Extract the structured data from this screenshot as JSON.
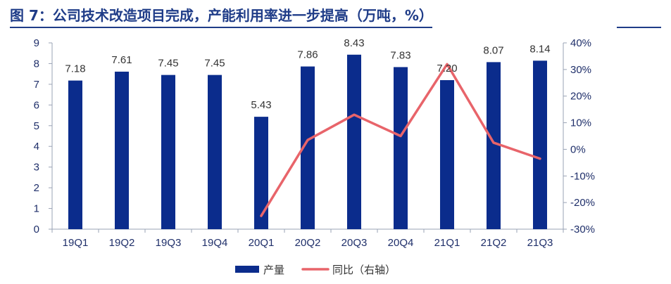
{
  "title": "图 7：公司技术改造项目完成，产能利用率进一步提高（万吨，%）",
  "chart_data": {
    "type": "bar",
    "categories": [
      "19Q1",
      "19Q2",
      "19Q3",
      "19Q4",
      "20Q1",
      "20Q2",
      "20Q3",
      "20Q4",
      "21Q1",
      "21Q2",
      "21Q3"
    ],
    "series": [
      {
        "name": "产量",
        "type": "bar",
        "axis": "left",
        "values": [
          7.18,
          7.61,
          7.45,
          7.45,
          5.43,
          7.86,
          8.43,
          7.83,
          7.2,
          8.07,
          8.14
        ],
        "labels": [
          "7.18",
          "7.61",
          "7.45",
          "7.45",
          "5.43",
          "7.86",
          "8.43",
          "7.83",
          "7.20",
          "8.07",
          "8.14"
        ],
        "color": "#0B2C8C"
      },
      {
        "name": "同比（右轴）",
        "type": "line",
        "axis": "right",
        "values": [
          null,
          null,
          null,
          null,
          -25,
          3.5,
          13,
          5,
          32,
          2.5,
          -3.5
        ],
        "color": "#E8646A"
      }
    ],
    "y_left": {
      "min": 0,
      "max": 9,
      "ticks": [
        "0",
        "1",
        "2",
        "3",
        "4",
        "5",
        "6",
        "7",
        "8",
        "9"
      ]
    },
    "y_right": {
      "min": -30,
      "max": 40,
      "ticks": [
        "-30%",
        "-20%",
        "-10%",
        "0%",
        "10%",
        "20%",
        "30%",
        "40%"
      ]
    },
    "grid": false,
    "legend_position": "bottom"
  }
}
